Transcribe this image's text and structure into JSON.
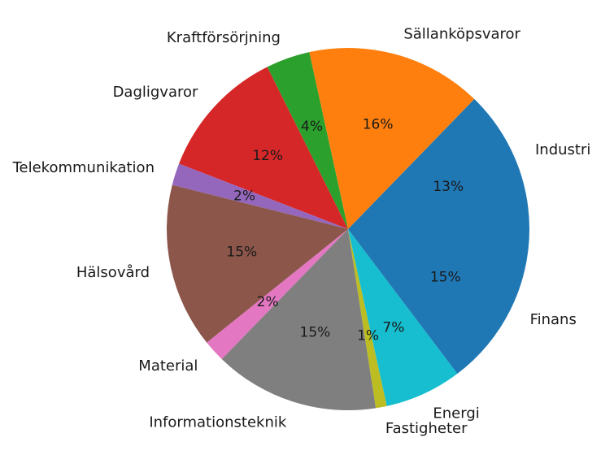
{
  "chart_data": {
    "type": "pie",
    "title": "",
    "slices": [
      {
        "label": "Industri",
        "value": 13,
        "pct_label": "13%",
        "color": "#1f77b4"
      },
      {
        "label": "Sällanköpsvaror",
        "value": 16,
        "pct_label": "16%",
        "color": "#ff7f0e"
      },
      {
        "label": "Kraftförsörjning",
        "value": 4,
        "pct_label": "4%",
        "color": "#2ca02c"
      },
      {
        "label": "Dagligvaror",
        "value": 12,
        "pct_label": "12%",
        "color": "#d62728"
      },
      {
        "label": "Telekommunikation",
        "value": 2,
        "pct_label": "2%",
        "color": "#9467bd"
      },
      {
        "label": "Hälsovård",
        "value": 15,
        "pct_label": "15%",
        "color": "#8c564b"
      },
      {
        "label": "Material",
        "value": 2,
        "pct_label": "2%",
        "color": "#e377c2"
      },
      {
        "label": "Informationsteknik",
        "value": 15,
        "pct_label": "15%",
        "color": "#7f7f7f"
      },
      {
        "label": "Fastigheter",
        "value": 1,
        "pct_label": "1%",
        "color": "#bcbd22"
      },
      {
        "label": "Energi",
        "value": 7,
        "pct_label": "7%",
        "color": "#17becf"
      },
      {
        "label": "Finans",
        "value": 15,
        "pct_label": "15%",
        "color": "#1f77b4"
      }
    ],
    "start_angle_deg": 0,
    "direction": "counterclockwise",
    "legend": "none"
  }
}
